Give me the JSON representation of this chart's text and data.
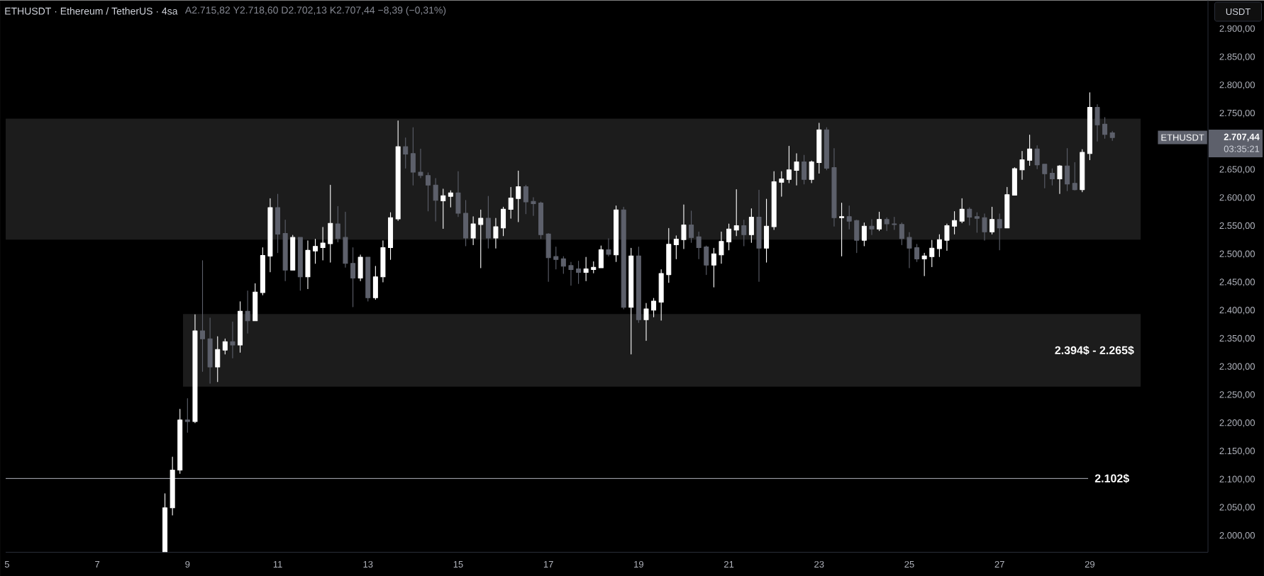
{
  "chart_data": {
    "type": "candlestick",
    "title": "ETHUSDT · Ethereum / TetherUS · 4sa",
    "subtitle": "A2.715,82 Y2.718,60 D2.702,13 K2.707,44 −8,39 (−0,31%)",
    "x": [
      8.5,
      8.667,
      8.833,
      9,
      9.167,
      9.333,
      9.5,
      9.667,
      9.833,
      10,
      10.167,
      10.333,
      10.5,
      10.667,
      10.833,
      11,
      11.167,
      11.333,
      11.5,
      11.667,
      11.833,
      12,
      12.167,
      12.333,
      12.5,
      12.667,
      12.833,
      13,
      13.167,
      13.333,
      13.5,
      13.667,
      13.833,
      14,
      14.167,
      14.333,
      14.5,
      14.667,
      14.833,
      15,
      15.167,
      15.333,
      15.5,
      15.667,
      15.833,
      16,
      16.167,
      16.333,
      16.5,
      16.667,
      16.833,
      17,
      17.167,
      17.333,
      17.5,
      17.667,
      17.833,
      18,
      18.167,
      18.333,
      18.5,
      18.667,
      18.833,
      19,
      19.167,
      19.333,
      19.5,
      19.667,
      19.833,
      20,
      20.167,
      20.333,
      20.5,
      20.667,
      20.833,
      21,
      21.167,
      21.333,
      21.5,
      21.667,
      21.833,
      22,
      22.167,
      22.333,
      22.5,
      22.667,
      22.833,
      23,
      23.167,
      23.333,
      23.5,
      23.667,
      23.833,
      24,
      24.167,
      24.333,
      24.5,
      24.667,
      24.833,
      25,
      25.167,
      25.333,
      25.5,
      25.667,
      25.833,
      26,
      26.167,
      26.333,
      26.5,
      26.667,
      26.833,
      27,
      27.167,
      27.333,
      27.5,
      27.667,
      27.833,
      28,
      28.167,
      28.333,
      28.5,
      28.667,
      28.833,
      29,
      29.167,
      29.333,
      29.5
    ],
    "ohlc": [
      [
        1972,
        2075,
        1972,
        2050
      ],
      [
        2050,
        2140,
        2037,
        2117
      ],
      [
        2117,
        2225,
        2111,
        2206
      ],
      [
        2206,
        2244,
        2184,
        2203
      ],
      [
        2203,
        2393,
        2201,
        2364
      ],
      [
        2364,
        2489,
        2292,
        2350
      ],
      [
        2350,
        2387,
        2271,
        2300
      ],
      [
        2300,
        2354,
        2274,
        2331
      ],
      [
        2330,
        2350,
        2323,
        2345
      ],
      [
        2345,
        2380,
        2316,
        2339
      ],
      [
        2339,
        2416,
        2326,
        2399
      ],
      [
        2399,
        2435,
        2360,
        2382
      ],
      [
        2382,
        2448,
        2382,
        2433
      ],
      [
        2432,
        2512,
        2428,
        2498
      ],
      [
        2497,
        2599,
        2469,
        2583
      ],
      [
        2583,
        2607,
        2503,
        2536
      ],
      [
        2537,
        2561,
        2453,
        2472
      ],
      [
        2472,
        2534,
        2472,
        2530
      ],
      [
        2530,
        2530,
        2436,
        2460
      ],
      [
        2460,
        2524,
        2439,
        2507
      ],
      [
        2506,
        2527,
        2484,
        2514
      ],
      [
        2512,
        2548,
        2490,
        2520
      ],
      [
        2519,
        2623,
        2486,
        2555
      ],
      [
        2554,
        2585,
        2522,
        2528
      ],
      [
        2530,
        2575,
        2477,
        2484
      ],
      [
        2484,
        2512,
        2407,
        2458
      ],
      [
        2458,
        2499,
        2453,
        2495
      ],
      [
        2495,
        2495,
        2417,
        2423
      ],
      [
        2423,
        2479,
        2420,
        2460
      ],
      [
        2460,
        2524,
        2451,
        2512
      ],
      [
        2512,
        2574,
        2491,
        2565
      ],
      [
        2563,
        2737,
        2560,
        2691
      ],
      [
        2691,
        2707,
        2653,
        2678
      ],
      [
        2679,
        2725,
        2623,
        2646
      ],
      [
        2646,
        2687,
        2636,
        2640
      ],
      [
        2640,
        2645,
        2577,
        2623
      ],
      [
        2623,
        2635,
        2559,
        2596
      ],
      [
        2595,
        2616,
        2546,
        2604
      ],
      [
        2603,
        2613,
        2584,
        2609
      ],
      [
        2609,
        2647,
        2567,
        2573
      ],
      [
        2573,
        2596,
        2515,
        2529
      ],
      [
        2529,
        2567,
        2517,
        2554
      ],
      [
        2553,
        2579,
        2476,
        2564
      ],
      [
        2564,
        2603,
        2511,
        2529
      ],
      [
        2529,
        2564,
        2511,
        2549
      ],
      [
        2547,
        2584,
        2533,
        2580
      ],
      [
        2580,
        2619,
        2564,
        2600
      ],
      [
        2599,
        2648,
        2558,
        2620
      ],
      [
        2620,
        2623,
        2572,
        2593
      ],
      [
        2594,
        2601,
        2569,
        2590
      ],
      [
        2591,
        2593,
        2528,
        2535
      ],
      [
        2536,
        2537,
        2452,
        2494
      ],
      [
        2496,
        2513,
        2474,
        2491
      ],
      [
        2492,
        2496,
        2466,
        2479
      ],
      [
        2480,
        2486,
        2445,
        2473
      ],
      [
        2474,
        2488,
        2448,
        2468
      ],
      [
        2468,
        2495,
        2453,
        2474
      ],
      [
        2473,
        2487,
        2467,
        2477
      ],
      [
        2476,
        2515,
        2476,
        2508
      ],
      [
        2508,
        2528,
        2497,
        2500
      ],
      [
        2499,
        2586,
        2487,
        2579
      ],
      [
        2579,
        2584,
        2403,
        2406
      ],
      [
        2406,
        2511,
        2323,
        2497
      ],
      [
        2497,
        2513,
        2379,
        2384
      ],
      [
        2384,
        2413,
        2347,
        2403
      ],
      [
        2401,
        2422,
        2389,
        2417
      ],
      [
        2415,
        2473,
        2383,
        2466
      ],
      [
        2464,
        2546,
        2450,
        2518
      ],
      [
        2517,
        2533,
        2492,
        2527
      ],
      [
        2526,
        2588,
        2510,
        2552
      ],
      [
        2552,
        2577,
        2521,
        2530
      ],
      [
        2531,
        2540,
        2492,
        2512
      ],
      [
        2513,
        2515,
        2464,
        2481
      ],
      [
        2481,
        2511,
        2442,
        2501
      ],
      [
        2499,
        2540,
        2484,
        2523
      ],
      [
        2522,
        2554,
        2508,
        2545
      ],
      [
        2543,
        2615,
        2533,
        2551
      ],
      [
        2551,
        2561,
        2515,
        2535
      ],
      [
        2535,
        2581,
        2521,
        2566
      ],
      [
        2566,
        2614,
        2452,
        2511
      ],
      [
        2511,
        2598,
        2486,
        2550
      ],
      [
        2549,
        2647,
        2544,
        2629
      ],
      [
        2628,
        2647,
        2603,
        2634
      ],
      [
        2633,
        2692,
        2627,
        2650
      ],
      [
        2649,
        2679,
        2623,
        2664
      ],
      [
        2664,
        2676,
        2625,
        2633
      ],
      [
        2633,
        2666,
        2627,
        2664
      ],
      [
        2663,
        2733,
        2644,
        2721
      ],
      [
        2721,
        2725,
        2650,
        2653
      ],
      [
        2654,
        2688,
        2550,
        2565
      ],
      [
        2565,
        2591,
        2497,
        2567
      ],
      [
        2567,
        2586,
        2545,
        2559
      ],
      [
        2560,
        2561,
        2503,
        2525
      ],
      [
        2525,
        2556,
        2515,
        2550
      ],
      [
        2550,
        2562,
        2535,
        2545
      ],
      [
        2545,
        2575,
        2542,
        2562
      ],
      [
        2562,
        2565,
        2542,
        2554
      ],
      [
        2554,
        2566,
        2544,
        2553
      ],
      [
        2553,
        2556,
        2517,
        2528
      ],
      [
        2530,
        2539,
        2476,
        2511
      ],
      [
        2512,
        2518,
        2487,
        2492
      ],
      [
        2492,
        2502,
        2462,
        2497
      ],
      [
        2496,
        2525,
        2478,
        2511
      ],
      [
        2510,
        2535,
        2496,
        2526
      ],
      [
        2525,
        2554,
        2507,
        2551
      ],
      [
        2550,
        2576,
        2536,
        2560
      ],
      [
        2559,
        2599,
        2556,
        2580
      ],
      [
        2580,
        2583,
        2552,
        2566
      ],
      [
        2567,
        2574,
        2539,
        2564
      ],
      [
        2565,
        2572,
        2525,
        2540
      ],
      [
        2540,
        2584,
        2536,
        2562
      ],
      [
        2562,
        2572,
        2508,
        2547
      ],
      [
        2547,
        2619,
        2547,
        2606
      ],
      [
        2605,
        2654,
        2605,
        2652
      ],
      [
        2650,
        2683,
        2633,
        2668
      ],
      [
        2667,
        2712,
        2658,
        2687
      ],
      [
        2687,
        2693,
        2652,
        2659
      ],
      [
        2660,
        2660,
        2618,
        2643
      ],
      [
        2644,
        2652,
        2623,
        2634
      ],
      [
        2634,
        2658,
        2608,
        2657
      ],
      [
        2657,
        2688,
        2613,
        2625
      ],
      [
        2626,
        2663,
        2614,
        2615
      ],
      [
        2615,
        2686,
        2611,
        2681
      ],
      [
        2679,
        2787,
        2668,
        2761
      ],
      [
        2761,
        2766,
        2701,
        2730
      ],
      [
        2731,
        2743,
        2706,
        2713
      ],
      [
        2715.82,
        2718.6,
        2702.13,
        2707.44
      ]
    ],
    "colors": [
      "#ffffff",
      "#ffffff",
      "#ffffff",
      "#5d606b",
      "#ffffff",
      "#5d606b",
      "#5d606b",
      "#ffffff",
      "#ffffff",
      "#5d606b",
      "#ffffff",
      "#5d606b",
      "#ffffff",
      "#ffffff",
      "#ffffff",
      "#5d606b",
      "#5d606b",
      "#ffffff",
      "#5d606b",
      "#ffffff",
      "#ffffff",
      "#ffffff",
      "#ffffff",
      "#5d606b",
      "#5d606b",
      "#5d606b",
      "#ffffff",
      "#5d606b",
      "#ffffff",
      "#ffffff",
      "#ffffff",
      "#ffffff",
      "#5d606b",
      "#5d606b",
      "#5d606b",
      "#5d606b",
      "#5d606b",
      "#ffffff",
      "#ffffff",
      "#5d606b",
      "#5d606b",
      "#ffffff",
      "#ffffff",
      "#5d606b",
      "#ffffff",
      "#ffffff",
      "#ffffff",
      "#ffffff",
      "#5d606b",
      "#5d606b",
      "#5d606b",
      "#5d606b",
      "#5d606b",
      "#5d606b",
      "#5d606b",
      "#5d606b",
      "#ffffff",
      "#ffffff",
      "#ffffff",
      "#5d606b",
      "#ffffff",
      "#5d606b",
      "#ffffff",
      "#5d606b",
      "#ffffff",
      "#ffffff",
      "#ffffff",
      "#ffffff",
      "#ffffff",
      "#ffffff",
      "#5d606b",
      "#5d606b",
      "#5d606b",
      "#ffffff",
      "#ffffff",
      "#ffffff",
      "#ffffff",
      "#5d606b",
      "#ffffff",
      "#5d606b",
      "#ffffff",
      "#ffffff",
      "#ffffff",
      "#ffffff",
      "#ffffff",
      "#5d606b",
      "#ffffff",
      "#ffffff",
      "#5d606b",
      "#5d606b",
      "#ffffff",
      "#5d606b",
      "#5d606b",
      "#ffffff",
      "#5d606b",
      "#ffffff",
      "#5d606b",
      "#5d606b",
      "#5d606b",
      "#5d606b",
      "#5d606b",
      "#ffffff",
      "#ffffff",
      "#ffffff",
      "#ffffff",
      "#ffffff",
      "#ffffff",
      "#5d606b",
      "#5d606b",
      "#5d606b",
      "#ffffff",
      "#5d606b",
      "#ffffff",
      "#ffffff",
      "#ffffff",
      "#ffffff",
      "#5d606b",
      "#5d606b",
      "#5d606b",
      "#ffffff",
      "#5d606b",
      "#5d606b",
      "#ffffff",
      "#ffffff",
      "#5d606b",
      "#5d606b",
      "#5d606b"
    ],
    "xlim": [
      4.97,
      31.62
    ],
    "ylim": [
      1971,
      2951
    ],
    "xticks": [
      5,
      7,
      9,
      11,
      13,
      15,
      17,
      19,
      21,
      23,
      25,
      27,
      29
    ],
    "yticks": [
      {
        "value": 2000,
        "label": "2.000,00"
      },
      {
        "value": 2050,
        "label": "2.050,00"
      },
      {
        "value": 2100,
        "label": "2.100,00"
      },
      {
        "value": 2150,
        "label": "2.150,00"
      },
      {
        "value": 2200,
        "label": "2.200,00"
      },
      {
        "value": 2250,
        "label": "2.250,00"
      },
      {
        "value": 2300,
        "label": "2.300,00"
      },
      {
        "value": 2350,
        "label": "2.350,00"
      },
      {
        "value": 2400,
        "label": "2.400,00"
      },
      {
        "value": 2450,
        "label": "2.450,00"
      },
      {
        "value": 2500,
        "label": "2.500,00"
      },
      {
        "value": 2550,
        "label": "2.550,00"
      },
      {
        "value": 2600,
        "label": "2.600,00"
      },
      {
        "value": 2650,
        "label": "2.650,00"
      },
      {
        "value": 2750,
        "label": "2.750,00"
      },
      {
        "value": 2800,
        "label": "2.800,00"
      },
      {
        "value": 2850,
        "label": "2.850,00"
      },
      {
        "value": 2900,
        "label": "2.900,00"
      }
    ],
    "bands": [
      {
        "axis": "y",
        "from": 2526,
        "to": 2741,
        "color": "#1c1c1c"
      },
      {
        "axis": "y",
        "from": 2265,
        "to": 2394,
        "label": "2.394$ - 2.265$",
        "color": "#1c1c1c"
      }
    ],
    "ref_lines": [
      {
        "axis": "y",
        "value": 2102,
        "label": "2.102$",
        "color": "#b2b5be"
      }
    ],
    "annotations": [
      "USDT",
      "ETHUSDT",
      "2.707,44",
      "03:35:21"
    ]
  }
}
